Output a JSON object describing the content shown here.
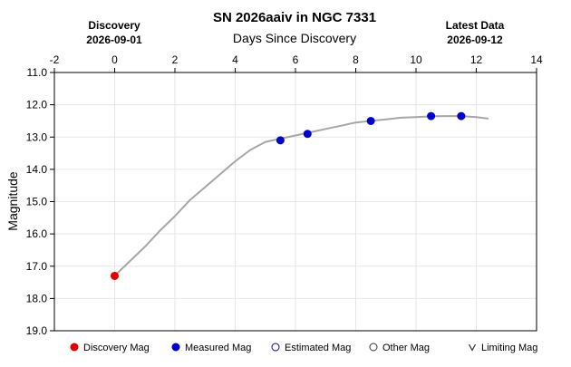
{
  "chart_data": {
    "type": "line",
    "title": "SN 2026aaiv in NGC 7331",
    "xlabel": "Days Since Discovery",
    "ylabel": "Magnitude",
    "discovery": {
      "label": "Discovery",
      "date": "2026-09-01"
    },
    "latest": {
      "label": "Latest Data",
      "date": "2026-09-12"
    },
    "xlim": [
      -2,
      14
    ],
    "ylim": [
      11.0,
      19.0
    ],
    "y_inverted": true,
    "x_ticks": [
      "-2",
      "0",
      "2",
      "4",
      "6",
      "8",
      "10",
      "12",
      "14"
    ],
    "y_ticks": [
      "11.0",
      "12.0",
      "13.0",
      "14.0",
      "15.0",
      "16.0",
      "17.0",
      "18.0",
      "19.0"
    ],
    "grid": true,
    "curve": {
      "color": "#a6a6a6",
      "x": [
        0,
        0.5,
        1,
        1.5,
        2,
        2.5,
        3,
        3.5,
        4,
        4.5,
        5,
        5.5,
        6,
        6.5,
        7,
        7.5,
        8,
        8.5,
        9,
        9.5,
        10,
        10.5,
        11,
        11.5,
        12,
        12.4
      ],
      "y": [
        17.3,
        16.85,
        16.4,
        15.9,
        15.45,
        14.95,
        14.55,
        14.15,
        13.75,
        13.4,
        13.15,
        13.05,
        12.95,
        12.85,
        12.75,
        12.65,
        12.55,
        12.5,
        12.45,
        12.4,
        12.38,
        12.36,
        12.35,
        12.35,
        12.38,
        12.43
      ]
    },
    "series": [
      {
        "name": "Discovery Mag",
        "color": "#dd0000",
        "x": [
          0
        ],
        "y": [
          17.3
        ]
      },
      {
        "name": "Measured Mag",
        "color": "#0000cc",
        "x": [
          5.5,
          6.4,
          8.5,
          10.5,
          11.5
        ],
        "y": [
          13.1,
          12.9,
          12.5,
          12.35,
          12.35
        ]
      }
    ],
    "legend": {
      "placement": "bottom",
      "items": [
        {
          "label": "Discovery Mag",
          "marker": "filled-circle",
          "color": "#dd0000"
        },
        {
          "label": "Measured Mag",
          "marker": "filled-circle",
          "color": "#0000cc"
        },
        {
          "label": "Estimated Mag",
          "marker": "open-circle",
          "color": "#0000cc"
        },
        {
          "label": "Other Mag",
          "marker": "open-circle",
          "color": "#333333"
        },
        {
          "label": "Limiting Mag",
          "marker": "v",
          "color": "#333333"
        }
      ]
    }
  }
}
